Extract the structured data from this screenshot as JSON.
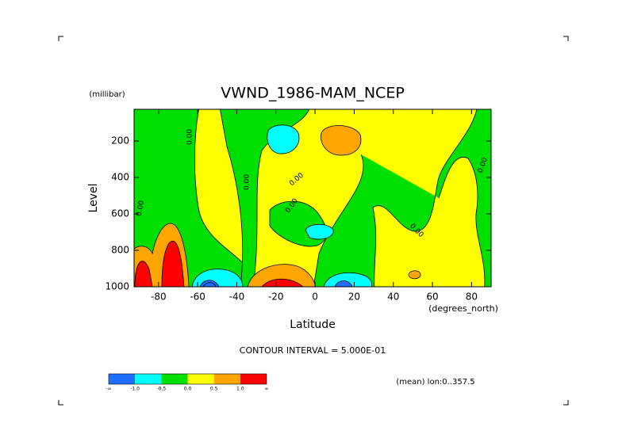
{
  "chart_data": {
    "type": "contour",
    "title": "VWND_1986-MAM_NCEP",
    "y_units": "(millibar)",
    "y_label": "Level",
    "x_label": "Latitude",
    "x_units": "(degrees_north)",
    "xlim": [
      -92.5,
      90
    ],
    "xticks": [
      -80,
      -60,
      -40,
      -20,
      0,
      20,
      40,
      60,
      80
    ],
    "ylim": [
      1000,
      26
    ],
    "yticks": [
      200,
      400,
      600,
      800,
      1000
    ],
    "contour_label": "0.00",
    "contour_interval": "CONTOUR INTERVAL = 5.000E-01",
    "note": "(mean) lon:0..357.5",
    "colors": [
      "#1e6eff",
      "#00ffff",
      "#00e000",
      "#ffff00",
      "#ffa500",
      "#ff0000"
    ],
    "level_labels": [
      "-∞",
      "-1.0",
      "-0.5",
      "0.0",
      "0.5",
      "1.0",
      "∞"
    ]
  }
}
